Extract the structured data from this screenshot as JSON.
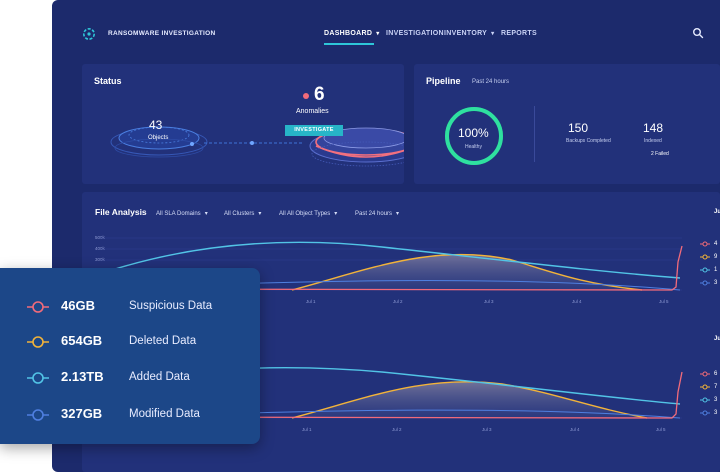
{
  "app": {
    "title": "RANSOMWARE INVESTIGATION"
  },
  "nav": {
    "items": [
      {
        "label": "DASHBOARD",
        "dropdown": true,
        "active": true
      },
      {
        "label": "INVESTIGATION",
        "dropdown": false
      },
      {
        "label": "INVENTORY",
        "dropdown": true
      },
      {
        "label": "REPORTS",
        "dropdown": false
      }
    ],
    "caret": "▾",
    "search_icon": "search-icon"
  },
  "status": {
    "title": "Status",
    "objects_count": "43",
    "objects_label": "Objects",
    "anomalies_count": "6",
    "anomalies_label": "Anomalies",
    "investigate_label": "INVESTIGATE"
  },
  "pipeline": {
    "title": "Pipeline",
    "period": "Past 24 hours",
    "healthy_percent": "100%",
    "healthy_label": "Healthy",
    "healthy_fraction": 1.0,
    "backups_count": "150",
    "backups_label": "Backups Completed",
    "indexed_count": "148",
    "indexed_label": "Indexed",
    "failed_label": "2 Failed"
  },
  "file_analysis": {
    "title": "File Analysis",
    "filters": [
      "All SLA Domains",
      "All Clusters",
      "All All Object Types",
      "Past 24 hours"
    ],
    "side_header": "Ju"
  },
  "chart_data": [
    {
      "type": "area",
      "y_tick_labels": [
        "500k",
        "400k",
        "300k"
      ],
      "x_tick_labels": [
        "Jul 1",
        "Jul 2",
        "Jul 3",
        "Jul 4",
        "Jul 5"
      ],
      "series": [
        {
          "name": "Added Data",
          "color": "#52c4e6"
        },
        {
          "name": "Deleted Data",
          "color": "#f2b33a"
        },
        {
          "name": "Suspicious Data",
          "color": "#f26b7a"
        },
        {
          "name": "Modified Data",
          "color": "#4f7fe0"
        }
      ],
      "side_values": [
        "4",
        "9",
        "1",
        "3"
      ]
    },
    {
      "type": "area",
      "x_tick_labels": [
        "Jul 1",
        "Jul 2",
        "Jul 3",
        "Jul 4",
        "Jul 5"
      ],
      "series": [
        {
          "name": "Added Data",
          "color": "#52c4e6"
        },
        {
          "name": "Deleted Data",
          "color": "#f2b33a"
        },
        {
          "name": "Suspicious Data",
          "color": "#f26b7a"
        },
        {
          "name": "Modified Data",
          "color": "#4f7fe0"
        }
      ],
      "side_values": [
        "6",
        "7",
        "3",
        "3"
      ]
    }
  ],
  "legend": {
    "items": [
      {
        "value": "46GB",
        "label": "Suspicious Data",
        "color": "#f26b7a"
      },
      {
        "value": "654GB",
        "label": "Deleted Data",
        "color": "#f2b33a"
      },
      {
        "value": "2.13TB",
        "label": "Added Data",
        "color": "#52c4e6"
      },
      {
        "value": "327GB",
        "label": "Modified Data",
        "color": "#4f7fe0"
      }
    ]
  }
}
